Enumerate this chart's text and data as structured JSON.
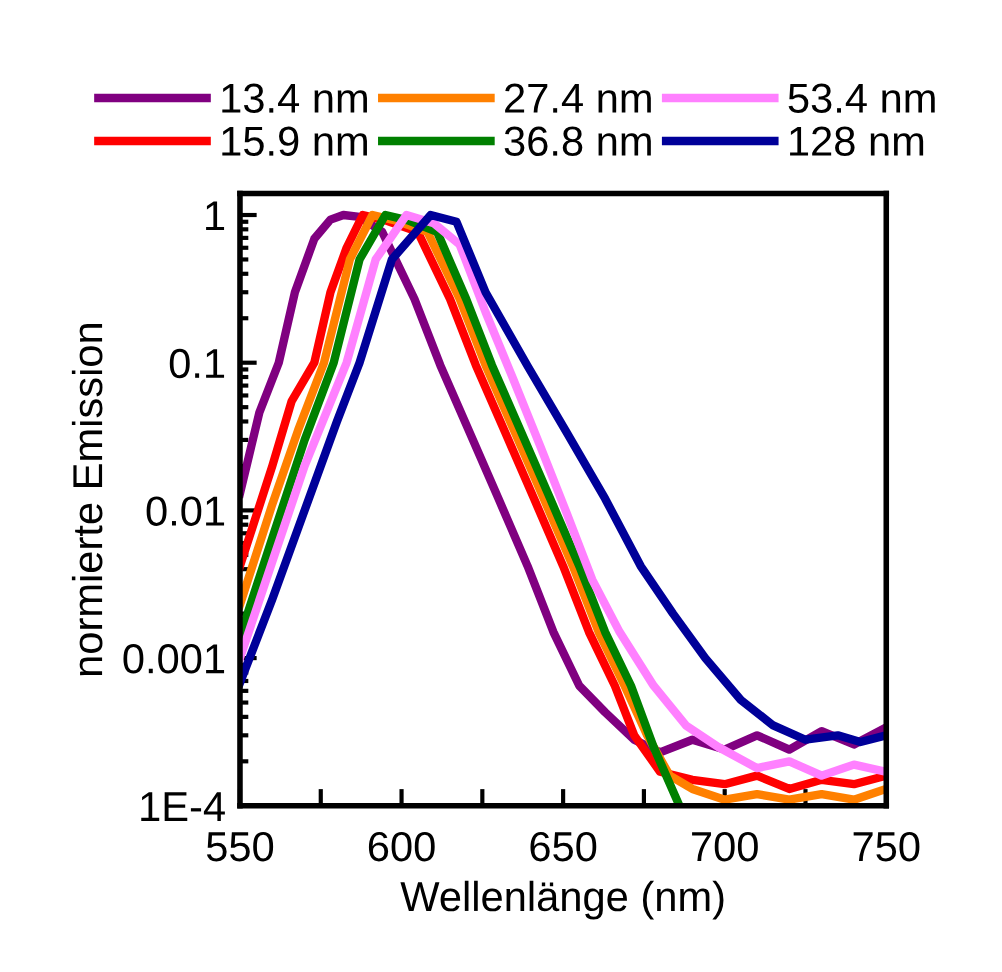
{
  "chart_data": {
    "type": "line",
    "xlabel": "Wellenlänge (nm)",
    "ylabel": "normierte Emission",
    "log": "y",
    "legend": "top",
    "grid": false,
    "marker": "none",
    "line_style": "solid",
    "xlim": [
      550,
      750
    ],
    "xticks": [
      550,
      {
        "value": 575,
        "label": null
      },
      600,
      {
        "value": 625,
        "label": null
      },
      650,
      {
        "value": 675,
        "label": null
      },
      700,
      {
        "value": 725,
        "label": null
      },
      750
    ],
    "ylim": [
      0.0001,
      1.4
    ],
    "yticks": [
      {
        "value": 0.0001,
        "label": "1E-4"
      },
      0.001,
      0.01,
      0.1,
      1
    ],
    "series": [
      {
        "name": "13.4 nm",
        "color": "#800080",
        "x": [
          550,
          556,
          562,
          567,
          573,
          578,
          582,
          587,
          594,
          604,
          612,
          621,
          630,
          639,
          647,
          655,
          663,
          672,
          680,
          690,
          700,
          710,
          720,
          730,
          740,
          750
        ],
        "values": [
          0.013,
          0.046,
          0.1,
          0.3,
          0.69,
          0.93,
          1,
          0.97,
          0.77,
          0.27,
          0.096,
          0.034,
          0.012,
          0.0042,
          0.0015,
          0.00065,
          0.00043,
          0.00028,
          0.00023,
          0.00028,
          0.00024,
          0.0003,
          0.00024,
          0.00032,
          0.00026,
          0.00034
        ]
      },
      {
        "name": "15.9 nm",
        "color": "#ff0000",
        "x": [
          550,
          560,
          566,
          573,
          578,
          583,
          588,
          595,
          605,
          615,
          623,
          632,
          641,
          650,
          658,
          666,
          672,
          680,
          690,
          700,
          710,
          720,
          730,
          740,
          750
        ],
        "values": [
          0.0042,
          0.02,
          0.055,
          0.1,
          0.3,
          0.6,
          1,
          0.92,
          0.77,
          0.27,
          0.096,
          0.034,
          0.012,
          0.0042,
          0.0015,
          0.00065,
          0.0003,
          0.00017,
          0.00015,
          0.00014,
          0.00016,
          0.00013,
          0.00015,
          0.00014,
          0.00016
        ]
      },
      {
        "name": "27.4 nm",
        "color": "#ff8000",
        "x": [
          550,
          560,
          568,
          576,
          584,
          591,
          598,
          608,
          618,
          626,
          635,
          644,
          653,
          661,
          669,
          676,
          683,
          690,
          700,
          710,
          720,
          730,
          740,
          750
        ],
        "values": [
          0.0023,
          0.011,
          0.035,
          0.1,
          0.5,
          1,
          0.92,
          0.77,
          0.27,
          0.096,
          0.034,
          0.012,
          0.0042,
          0.0015,
          0.00065,
          0.0003,
          0.00016,
          0.00013,
          0.00011,
          0.00012,
          0.00011,
          0.00012,
          0.00011,
          0.00013
        ]
      },
      {
        "name": "36.8 nm",
        "color": "#008000",
        "x": [
          550,
          560,
          570,
          579,
          587,
          595,
          602,
          611,
          620,
          628,
          637,
          646,
          655,
          663,
          671,
          678,
          686
        ],
        "values": [
          0.0014,
          0.0065,
          0.03,
          0.1,
          0.5,
          1,
          0.92,
          0.77,
          0.27,
          0.096,
          0.034,
          0.012,
          0.0042,
          0.0015,
          0.00065,
          0.00025,
          0.0001
        ]
      },
      {
        "name": "53.4 nm",
        "color": "#ff80ff",
        "x": [
          550,
          560,
          570,
          583,
          592,
          601.5,
          610,
          618,
          626,
          634.5,
          643,
          651,
          659,
          667.5,
          678,
          688,
          698,
          710,
          720,
          730,
          740,
          750
        ],
        "values": [
          0.001,
          0.0045,
          0.02,
          0.1,
          0.5,
          1,
          0.88,
          0.63,
          0.22,
          0.078,
          0.027,
          0.0097,
          0.0034,
          0.0015,
          0.00065,
          0.00035,
          0.00025,
          0.00018,
          0.0002,
          0.00016,
          0.00019,
          0.00017
        ]
      },
      {
        "name": "128 nm",
        "color": "#000099",
        "x": [
          550,
          560,
          570,
          580,
          587,
          597,
          609,
          617,
          626,
          639,
          651,
          663,
          674,
          684,
          694,
          705,
          715,
          725,
          735,
          742,
          750
        ],
        "values": [
          0.00068,
          0.0025,
          0.01,
          0.04,
          0.1,
          0.5,
          1,
          0.9,
          0.3,
          0.095,
          0.034,
          0.012,
          0.0042,
          0.002,
          0.001,
          0.00052,
          0.00035,
          0.00028,
          0.0003,
          0.00027,
          0.0003
        ]
      }
    ]
  }
}
